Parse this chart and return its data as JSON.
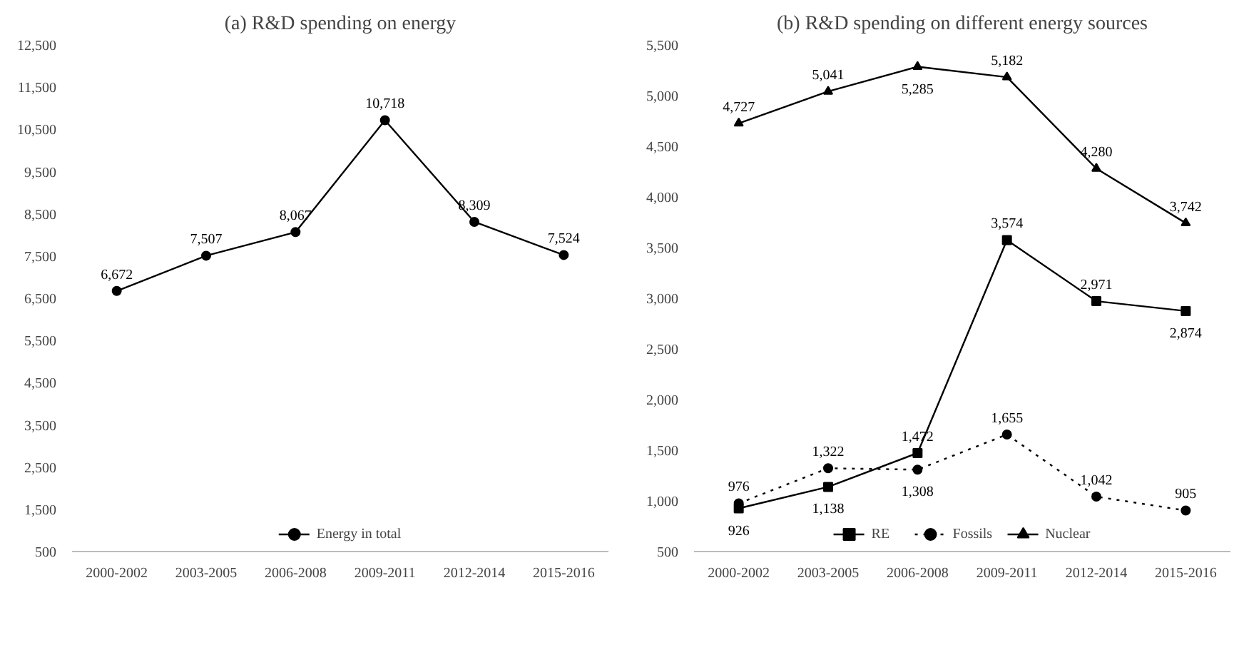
{
  "chart_data": [
    {
      "type": "line",
      "title": "(a) R&D spending on energy",
      "categories": [
        "2000-2002",
        "2003-2005",
        "2006-2008",
        "2009-2011",
        "2012-2014",
        "2015-2016"
      ],
      "series": [
        {
          "name": "Energy in total",
          "color": "#000000",
          "values": [
            6672,
            7507,
            8067,
            10718,
            8309,
            7524
          ],
          "value_labels": [
            "6,672",
            "7,507",
            "8,067",
            "10,718",
            "8,309",
            "7,524"
          ],
          "marker": "circle",
          "line_style": "solid"
        }
      ],
      "ylim": [
        500,
        12500
      ],
      "yticks": [
        {
          "value": 500,
          "label": "500"
        },
        {
          "value": 1500,
          "label": "1,500"
        },
        {
          "value": 2500,
          "label": "2,500"
        },
        {
          "value": 3500,
          "label": "3,500"
        },
        {
          "value": 4500,
          "label": "4,500"
        },
        {
          "value": 5500,
          "label": "5,500"
        },
        {
          "value": 6500,
          "label": "6,500"
        },
        {
          "value": 7500,
          "label": "7,500"
        },
        {
          "value": 8500,
          "label": "8,500"
        },
        {
          "value": 9500,
          "label": "9,500"
        },
        {
          "value": 10500,
          "label": "10,500"
        },
        {
          "value": 11500,
          "label": "11,500"
        },
        {
          "value": 12500,
          "label": "12,500"
        }
      ],
      "legend": "bottom",
      "grid": false
    },
    {
      "type": "line",
      "title": "(b) R&D spending on different energy sources",
      "categories": [
        "2000-2002",
        "2003-2005",
        "2006-2008",
        "2009-2011",
        "2012-2014",
        "2015-2016"
      ],
      "series": [
        {
          "name": "RE",
          "color": "#000000",
          "values": [
            926,
            1138,
            1472,
            3574,
            2971,
            2874
          ],
          "value_labels": [
            "926",
            "1,138",
            "1,472",
            "3,574",
            "2,971",
            "2,874"
          ],
          "marker": "square",
          "line_style": "solid"
        },
        {
          "name": "Fossils",
          "color": "#000000",
          "values": [
            976,
            1322,
            1308,
            1655,
            1042,
            905
          ],
          "value_labels": [
            "976",
            "1,322",
            "1,308",
            "1,655",
            "1,042",
            "905"
          ],
          "marker": "circle",
          "line_style": "dotted"
        },
        {
          "name": "Nuclear",
          "color": "#000000",
          "values": [
            4727,
            5041,
            5285,
            5182,
            4280,
            3742
          ],
          "value_labels": [
            "4,727",
            "5,041",
            "5,285",
            "5,182",
            "4,280",
            "3,742"
          ],
          "marker": "triangle",
          "line_style": "solid"
        }
      ],
      "ylim": [
        500,
        5500
      ],
      "yticks": [
        {
          "value": 500,
          "label": "500"
        },
        {
          "value": 1000,
          "label": "1,000"
        },
        {
          "value": 1500,
          "label": "1,500"
        },
        {
          "value": 2000,
          "label": "2,000"
        },
        {
          "value": 2500,
          "label": "2,500"
        },
        {
          "value": 3000,
          "label": "3,000"
        },
        {
          "value": 3500,
          "label": "3,500"
        },
        {
          "value": 4000,
          "label": "4,000"
        },
        {
          "value": 4500,
          "label": "4,500"
        },
        {
          "value": 5000,
          "label": "5,000"
        },
        {
          "value": 5500,
          "label": "5,500"
        }
      ],
      "legend": "bottom",
      "grid": false
    }
  ]
}
